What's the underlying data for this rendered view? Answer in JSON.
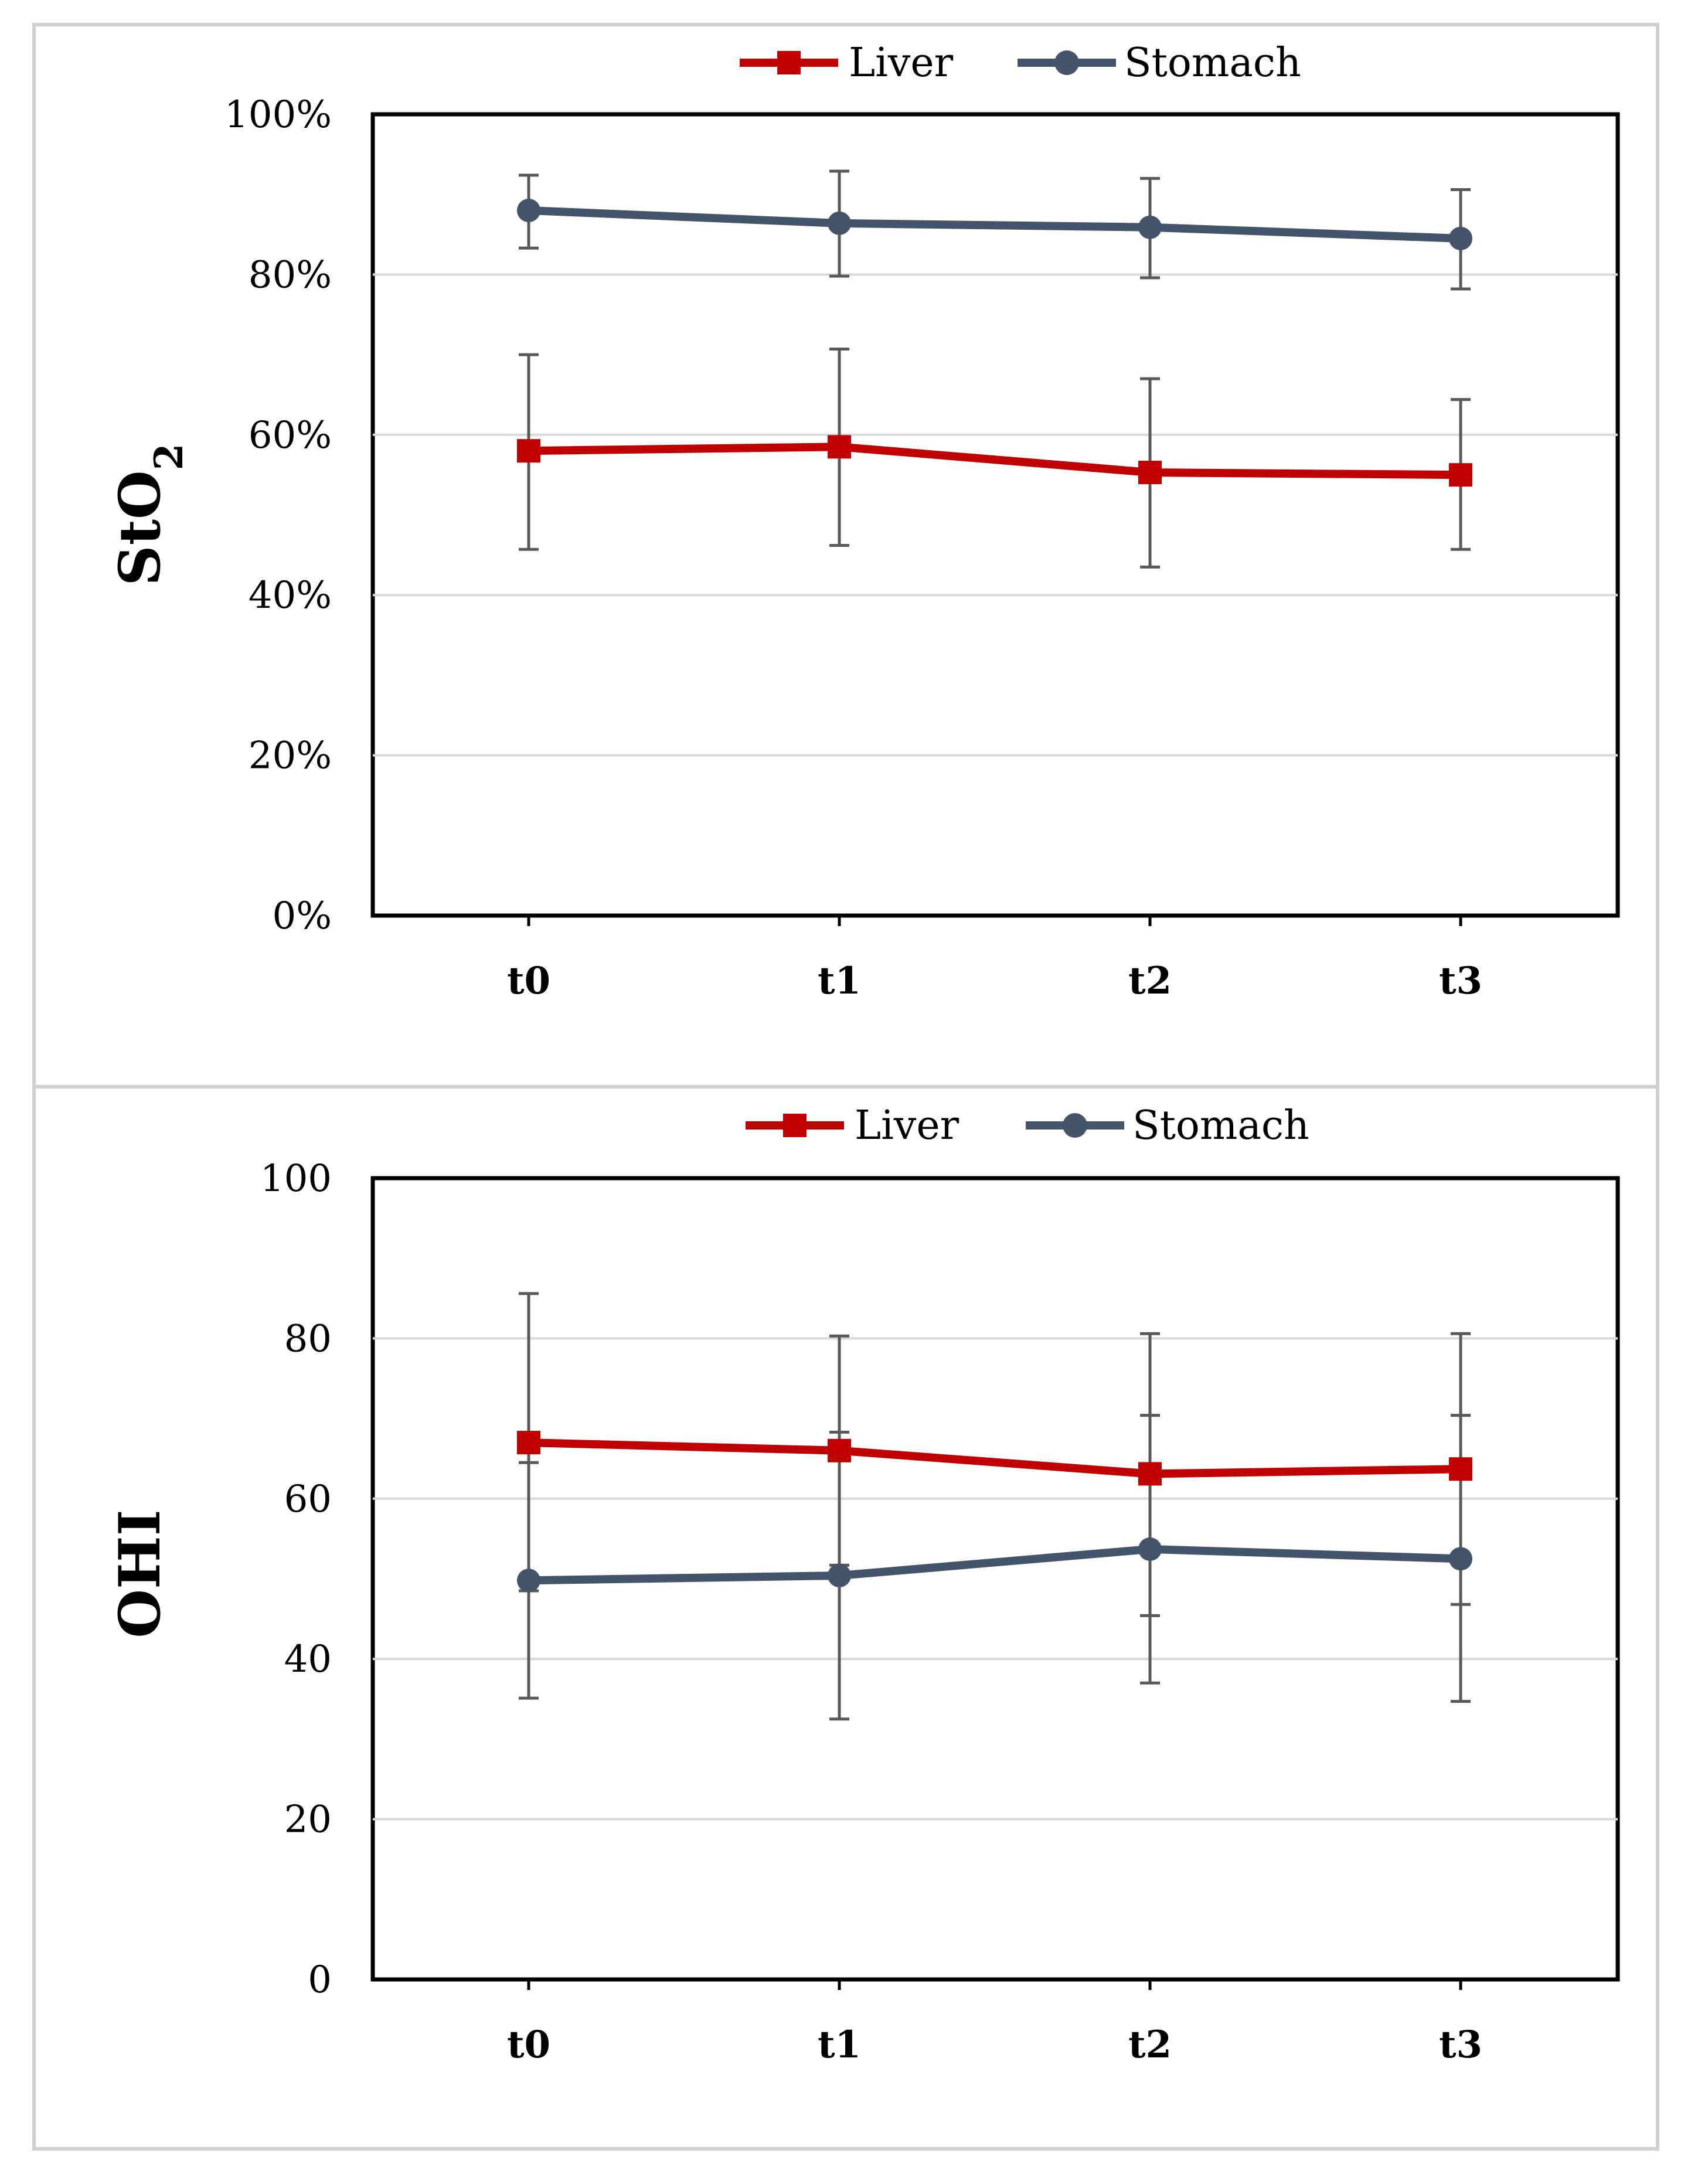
{
  "colors": {
    "liver": "#C00000",
    "stomach": "#44546A",
    "error_bar": "#595959",
    "grid": "#D9D9D9",
    "panel_border": "#D0D0D0"
  },
  "chart_data": [
    {
      "type": "line",
      "ylabel": "StO",
      "ylabel_subscript": "2",
      "categories": [
        "t0",
        "t1",
        "t2",
        "t3"
      ],
      "ylim": [
        0,
        100
      ],
      "yticks": [
        0,
        20,
        40,
        60,
        80,
        100
      ],
      "ytick_labels": [
        "0%",
        "20%",
        "40%",
        "60%",
        "80%",
        "100%"
      ],
      "grid": true,
      "legend_position": "top-center",
      "series": [
        {
          "name": "Liver",
          "marker": "square",
          "values": [
            58,
            58.5,
            55.3,
            55
          ],
          "err_low": [
            45.7,
            46.2,
            43.5,
            45.7
          ],
          "err_high": [
            70,
            70.7,
            67,
            64.4
          ]
        },
        {
          "name": "Stomach",
          "marker": "circle",
          "values": [
            88,
            86.4,
            85.9,
            84.5
          ],
          "err_low": [
            83.3,
            79.8,
            79.6,
            78.2
          ],
          "err_high": [
            92.4,
            92.9,
            92,
            90.6
          ]
        }
      ]
    },
    {
      "type": "line",
      "ylabel": "OHI",
      "ylabel_subscript": "",
      "categories": [
        "t0",
        "t1",
        "t2",
        "t3"
      ],
      "ylim": [
        0,
        100
      ],
      "yticks": [
        0,
        20,
        40,
        60,
        80,
        100
      ],
      "ytick_labels": [
        "0",
        "20",
        "40",
        "60",
        "80",
        "100"
      ],
      "grid": true,
      "legend_position": "top-center",
      "series": [
        {
          "name": "Liver",
          "marker": "square",
          "values": [
            67,
            66,
            63.1,
            63.7
          ],
          "err_low": [
            48.5,
            51.7,
            45.4,
            46.8
          ],
          "err_high": [
            85.6,
            80.3,
            80.6,
            80.6
          ]
        },
        {
          "name": "Stomach",
          "marker": "circle",
          "values": [
            49.8,
            50.4,
            53.7,
            52.5
          ],
          "err_low": [
            35.1,
            32.5,
            37,
            34.7
          ],
          "err_high": [
            64.5,
            68.3,
            70.4,
            70.4
          ]
        }
      ]
    }
  ]
}
